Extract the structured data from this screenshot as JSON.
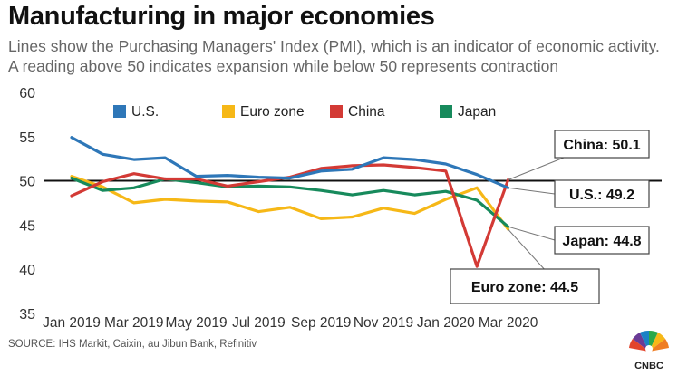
{
  "title": "Manufacturing in major economies",
  "subtitle": "Lines show the Purchasing Managers' Index (PMI), which is an indicator of economic activity. A reading above 50 indicates expansion while below 50 represents contraction",
  "source": "SOURCE: IHS Markit, Caixin, au Jibun Bank, Refinitiv",
  "logo_text": "CNBC",
  "chart_data": {
    "type": "line",
    "title": "Manufacturing in major economies",
    "x": [
      "Jan 2019",
      "Feb 2019",
      "Mar 2019",
      "Apr 2019",
      "May 2019",
      "Jun 2019",
      "Jul 2019",
      "Aug 2019",
      "Sep 2019",
      "Oct 2019",
      "Nov 2019",
      "Dec 2019",
      "Jan 2020",
      "Feb 2020",
      "Mar 2020"
    ],
    "x_tick_labels": [
      "Jan 2019",
      "Mar 2019",
      "May 2019",
      "Jul 2019",
      "Sep 2019",
      "Nov 2019",
      "Jan 2020",
      "Mar 2020"
    ],
    "ylim": [
      34,
      61
    ],
    "y_ticks": [
      35,
      40,
      45,
      50,
      55,
      60
    ],
    "reference_line": 50,
    "grid": false,
    "legend_position": "top",
    "series": [
      {
        "name": "U.S.",
        "color": "#2e77b8",
        "values": [
          54.9,
          53.0,
          52.4,
          52.6,
          50.5,
          50.6,
          50.4,
          50.3,
          51.1,
          51.3,
          52.6,
          52.4,
          51.9,
          50.7,
          49.2
        ]
      },
      {
        "name": "Euro zone",
        "color": "#f6b817",
        "values": [
          50.5,
          49.3,
          47.5,
          47.9,
          47.7,
          47.6,
          46.5,
          47.0,
          45.7,
          45.9,
          46.9,
          46.3,
          47.9,
          49.2,
          44.5
        ]
      },
      {
        "name": "China",
        "color": "#d33a35",
        "values": [
          48.3,
          49.9,
          50.8,
          50.2,
          50.2,
          49.4,
          49.9,
          50.4,
          51.4,
          51.7,
          51.8,
          51.5,
          51.1,
          40.3,
          50.1
        ]
      },
      {
        "name": "Japan",
        "color": "#178a5c",
        "values": [
          50.3,
          48.9,
          49.2,
          50.2,
          49.8,
          49.3,
          49.4,
          49.3,
          48.9,
          48.4,
          48.9,
          48.4,
          48.8,
          47.8,
          44.8
        ]
      }
    ],
    "annotations": [
      {
        "series": "China",
        "text": "China: 50.1"
      },
      {
        "series": "U.S.",
        "text": "U.S.: 49.2"
      },
      {
        "series": "Japan",
        "text": "Japan: 44.8"
      },
      {
        "series": "Euro zone",
        "text": "Euro zone: 44.5"
      }
    ]
  }
}
